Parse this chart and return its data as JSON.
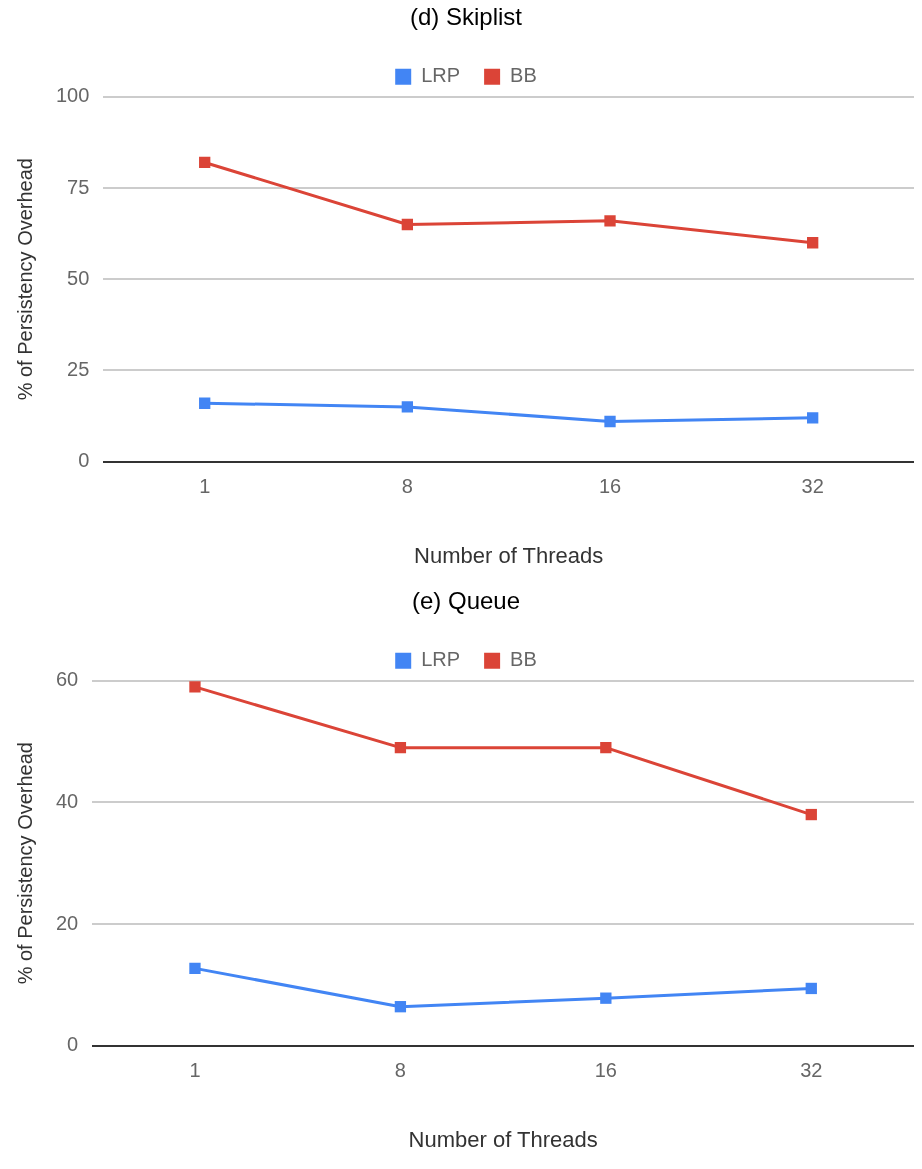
{
  "chart_data": [
    {
      "type": "line",
      "title": "(d) Skiplist",
      "xlabel": "Number of Threads",
      "ylabel": "% of Persistency Overhead",
      "categories": [
        "1",
        "8",
        "16",
        "32"
      ],
      "series": [
        {
          "name": "LRP",
          "color": "#4285f4",
          "values": [
            16,
            15,
            11,
            12
          ]
        },
        {
          "name": "BB",
          "color": "#db4437",
          "values": [
            82,
            65,
            66,
            60
          ]
        }
      ],
      "ylim": [
        0,
        100
      ],
      "yticks": [
        0,
        25,
        50,
        75,
        100
      ],
      "grid": "y",
      "legend": "top",
      "marker": "square",
      "line_style": "solid"
    },
    {
      "type": "line",
      "title": "(e) Queue",
      "xlabel": "Number of Threads",
      "ylabel": "% of Persistency Overhead",
      "categories": [
        "1",
        "8",
        "16",
        "32"
      ],
      "series": [
        {
          "name": "LRP",
          "color": "#4285f4",
          "values": [
            12.7,
            6.4,
            7.8,
            9.4
          ]
        },
        {
          "name": "BB",
          "color": "#db4437",
          "values": [
            59,
            49,
            49,
            38
          ]
        }
      ],
      "ylim": [
        0,
        60
      ],
      "yticks": [
        0,
        20,
        40,
        60
      ],
      "grid": "y",
      "legend": "top",
      "marker": "square",
      "line_style": "solid"
    }
  ]
}
